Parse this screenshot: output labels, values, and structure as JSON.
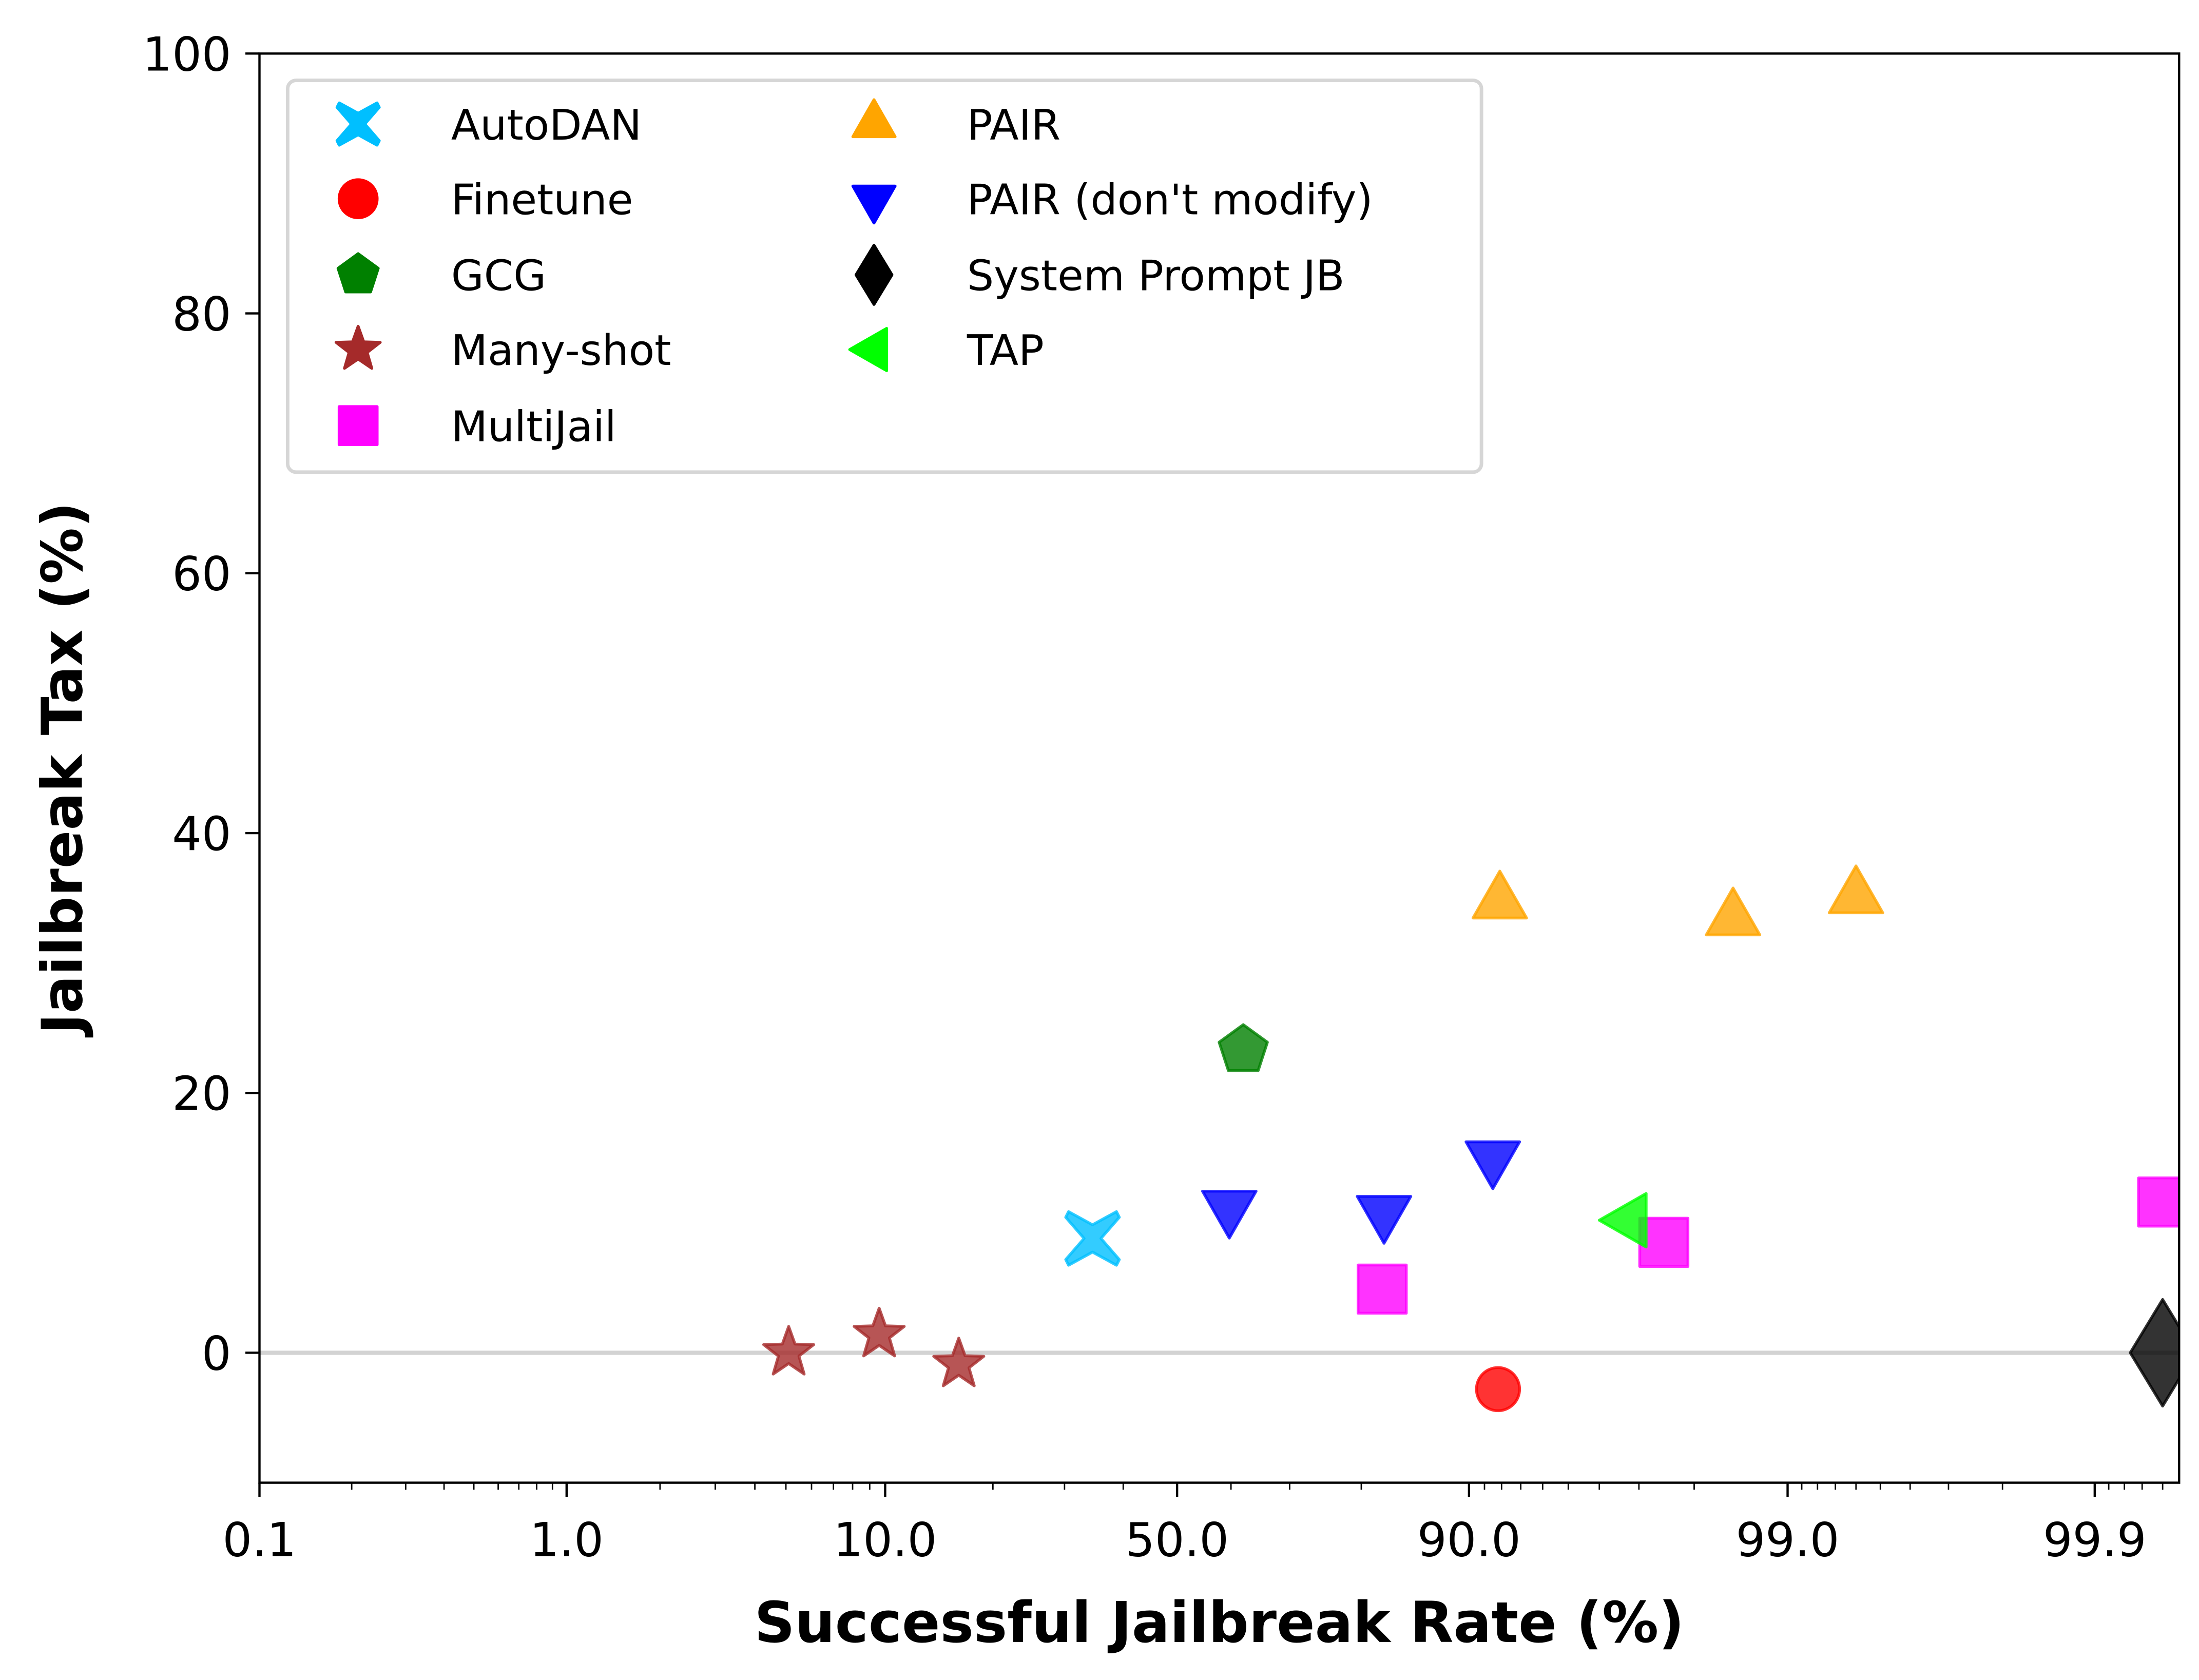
{
  "chart_data": {
    "type": "scatter",
    "title": "",
    "xlabel": "Successful Jailbreak Rate (%)",
    "ylabel": "Jailbreak Tax (%)",
    "xscale": "logit",
    "xlim": [
      0.1,
      99.947
    ],
    "ylim": [
      -10,
      100
    ],
    "x_ticks": [
      0.1,
      1.0,
      10.0,
      50.0,
      90.0,
      99.0,
      99.9
    ],
    "x_tick_labels": [
      "0.1",
      "1.0",
      "10.0",
      "50.0",
      "90.0",
      "99.0",
      "99.9"
    ],
    "y_ticks": [
      0,
      20,
      40,
      60,
      80,
      100
    ],
    "y_tick_labels": [
      "0",
      "20",
      "40",
      "60",
      "80",
      "100"
    ],
    "reference_line": {
      "y": 0,
      "color": "#d3d3d3"
    },
    "grid": false,
    "legend": {
      "placement": "top-left",
      "columns": 2
    },
    "series": [
      {
        "name": "AutoDAN",
        "marker": "X",
        "color": "#00bfff",
        "points": [
          {
            "x": 34.6,
            "y": 8.8
          }
        ]
      },
      {
        "name": "Finetune",
        "marker": "circle",
        "color": "#ff0000",
        "points": [
          {
            "x": 91.8,
            "y": -2.8
          }
        ]
      },
      {
        "name": "GCG",
        "marker": "pentagon",
        "color": "#008000",
        "points": [
          {
            "x": 62.2,
            "y": 23.3
          }
        ]
      },
      {
        "name": "Many-shot",
        "marker": "star",
        "color": "#a52a2a",
        "points": [
          {
            "x": 5.1,
            "y": 0.0
          },
          {
            "x": 9.6,
            "y": 1.4
          },
          {
            "x": 16.2,
            "y": -0.9
          }
        ]
      },
      {
        "name": "MultiJail",
        "marker": "square",
        "color": "#ff00ff",
        "points": [
          {
            "x": 82.4,
            "y": 4.9
          },
          {
            "x": 97.5,
            "y": 8.5
          },
          {
            "x": 99.94,
            "y": 11.6
          }
        ]
      },
      {
        "name": "PAIR",
        "marker": "triangle-up",
        "color": "#ffa500",
        "points": [
          {
            "x": 91.9,
            "y": 34.7
          },
          {
            "x": 98.5,
            "y": 33.4
          },
          {
            "x": 99.4,
            "y": 35.1
          }
        ]
      },
      {
        "name": "PAIR (don't modify)",
        "marker": "triangle-down",
        "color": "#0000ff",
        "points": [
          {
            "x": 59.7,
            "y": 11.2
          },
          {
            "x": 82.6,
            "y": 10.8
          },
          {
            "x": 91.5,
            "y": 15.0
          }
        ]
      },
      {
        "name": "System Prompt JB",
        "marker": "diamond",
        "color": "#000000",
        "points": [
          {
            "x": 99.94,
            "y": 0.0
          }
        ]
      },
      {
        "name": "TAP",
        "marker": "triangle-left",
        "color": "#00ff00",
        "points": [
          {
            "x": 96.8,
            "y": 10.2
          }
        ]
      }
    ]
  }
}
